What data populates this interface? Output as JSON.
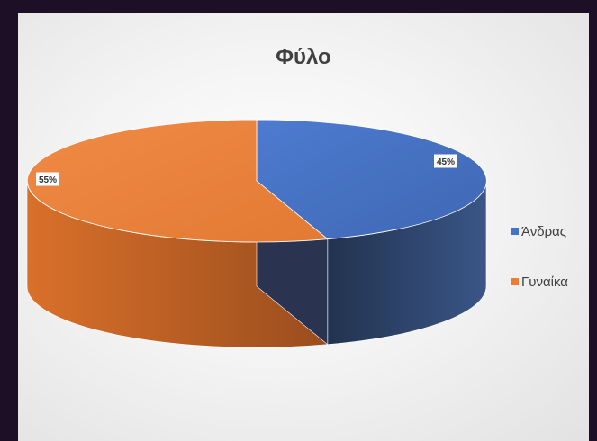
{
  "chart_data": {
    "type": "pie",
    "title": "Φύλο",
    "categories": [
      "Άνδρας",
      "Γυναίκα"
    ],
    "values": [
      45,
      55
    ],
    "data_labels": [
      "45%",
      "55%"
    ],
    "colors": [
      "#4472c4",
      "#ed7d31"
    ],
    "legend_position": "right",
    "style": "3d"
  }
}
